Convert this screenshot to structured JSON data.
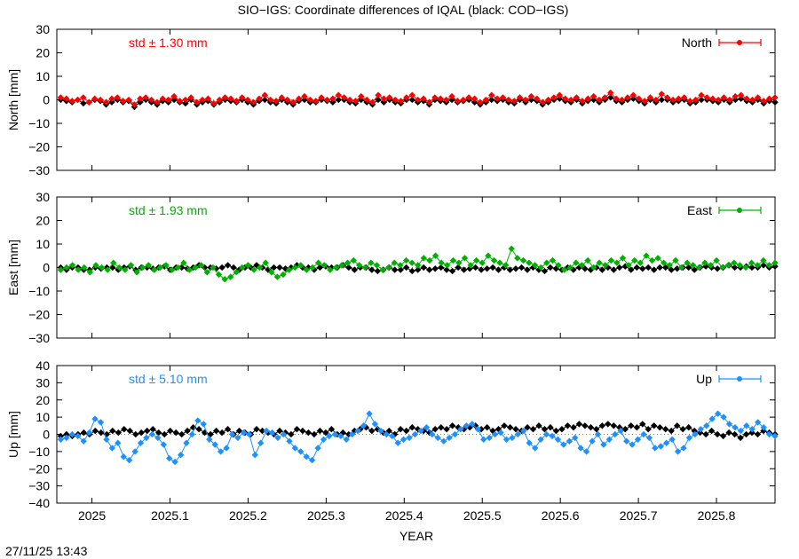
{
  "title": "SIO−IGS: Coordinate differences of IQAL (black: COD−IGS)",
  "xlabel": "YEAR",
  "timestamp": "27/11/25 13:43",
  "xticks": [
    "2025",
    "2025.1",
    "2025.2",
    "2025.3",
    "2025.4",
    "2025.5",
    "2025.6",
    "2025.7",
    "2025.8"
  ],
  "chart_data": [
    {
      "type": "scatter",
      "name": "north",
      "ylabel": "North [mm]",
      "legend": "North",
      "std_label": "std ± 1.30 mm",
      "color": "#ff0000",
      "ylim": [
        -30,
        30
      ],
      "yticks": [
        "30",
        "20",
        "10",
        "0",
        "−10",
        "−20",
        "−30"
      ],
      "xlim": [
        2024.955,
        2025.875
      ],
      "x_start": 2024.96,
      "x_end": 2025.875,
      "series": [
        {
          "name": "North",
          "values": [
            1,
            0.5,
            -0.5,
            0,
            1,
            -1,
            0.5,
            0,
            -1,
            0.5,
            1,
            -0.5,
            0,
            -2,
            0.5,
            1,
            0,
            -1,
            0.5,
            0,
            1.5,
            -0.5,
            0,
            1,
            -1,
            0,
            0.5,
            -1.5,
            0,
            1,
            0.5,
            -0.5,
            1,
            0,
            -1,
            0.5,
            2,
            0,
            -0.5,
            1,
            0,
            -1,
            0.5,
            1.5,
            0,
            -0.5,
            1,
            0,
            0.5,
            2,
            1,
            0,
            -0.5,
            1.5,
            0,
            -1,
            2,
            0.5,
            1,
            0,
            -0.5,
            1,
            2,
            0,
            0.5,
            -1,
            1,
            0.5,
            0,
            1.5,
            -0.5,
            0,
            1,
            0.5,
            -1,
            0,
            2,
            0.5,
            1,
            0,
            -0.5,
            1,
            0,
            1.5,
            0.5,
            -1,
            0,
            1,
            2,
            0.5,
            0,
            1,
            -0.5,
            0.5,
            1.5,
            0,
            1,
            3,
            0.5,
            0,
            1,
            2,
            0.5,
            -0.5,
            1,
            0,
            2.5,
            1,
            0,
            0.5,
            1,
            -0.5,
            0,
            2,
            1,
            0.5,
            0,
            1,
            0,
            1.5,
            2,
            0.5,
            0,
            1,
            -0.5,
            0.5,
            1
          ]
        },
        {
          "name": "black",
          "values": [
            0,
            -0.5,
            -1,
            0,
            -1.5,
            -1,
            0,
            -0.5,
            -2,
            -1,
            0,
            -1,
            -0.5,
            -3,
            -1,
            0,
            -1,
            -2,
            -0.5,
            -1,
            0,
            -1,
            -1.5,
            0,
            -2,
            -1,
            -0.5,
            -2,
            -1,
            0,
            -0.5,
            -1,
            0,
            -1,
            -2,
            -0.5,
            0,
            -1,
            -1.5,
            0,
            -1,
            -2,
            -0.5,
            0,
            -1,
            -1,
            0,
            -0.5,
            -1,
            0,
            0,
            -1,
            -1.5,
            0,
            -1,
            -2,
            0,
            -1,
            0,
            -1,
            -1.5,
            0,
            0,
            -1,
            -0.5,
            -2,
            0,
            -0.5,
            -1,
            0,
            -1,
            -0.5,
            0,
            -1,
            -2,
            -1,
            0,
            -0.5,
            0,
            -1,
            -1.5,
            0,
            -1,
            0,
            -0.5,
            -2,
            -1,
            0,
            0.5,
            -0.5,
            -1,
            0,
            -1.5,
            -0.5,
            0,
            -1,
            0,
            1,
            -0.5,
            -1,
            0,
            0.5,
            -0.5,
            -1.5,
            0,
            -1,
            0,
            0,
            -1,
            -0.5,
            0,
            -1.5,
            -1,
            0,
            0,
            -0.5,
            -1,
            0,
            -1,
            0,
            0.5,
            -0.5,
            -1,
            0,
            -1.5,
            -0.5,
            -1
          ]
        }
      ]
    },
    {
      "type": "scatter",
      "name": "east",
      "ylabel": "East [mm]",
      "legend": "East",
      "std_label": "std ± 1.93 mm",
      "color": "#00b000",
      "ylim": [
        -30,
        30
      ],
      "yticks": [
        "30",
        "20",
        "10",
        "0",
        "−10",
        "−20",
        "−30"
      ],
      "xlim": [
        2024.955,
        2025.875
      ],
      "x_start": 2024.96,
      "x_end": 2025.875,
      "series": [
        {
          "name": "East",
          "values": [
            -1,
            0,
            1,
            -1,
            0,
            -2,
            1,
            0,
            -1,
            2,
            0,
            -1,
            1,
            -2,
            0,
            1,
            -1,
            0,
            1,
            -1,
            0,
            2,
            -1,
            0,
            1,
            -2,
            0,
            -3,
            -5,
            -4,
            -2,
            0,
            1,
            -1,
            0,
            2,
            -2,
            -4,
            -3,
            -1,
            0,
            1,
            -1,
            0,
            2,
            1,
            -1,
            0,
            1,
            2,
            3,
            1,
            0,
            2,
            1,
            -1,
            0,
            2,
            1,
            3,
            2,
            1,
            4,
            3,
            5,
            2,
            1,
            3,
            2,
            4,
            1,
            3,
            2,
            5,
            3,
            2,
            1,
            8,
            4,
            3,
            2,
            1,
            0,
            2,
            3,
            1,
            -1,
            0,
            2,
            1,
            3,
            0,
            2,
            1,
            3,
            2,
            4,
            1,
            3,
            2,
            5,
            3,
            4,
            2,
            1,
            3,
            0,
            2,
            1,
            0,
            2,
            1,
            3,
            0,
            1,
            2,
            1,
            0,
            2,
            1,
            3,
            1,
            2
          ]
        },
        {
          "name": "black",
          "values": [
            0,
            -1,
            0,
            0,
            -1,
            -1,
            0,
            -0.5,
            0,
            0,
            -1,
            0,
            0.5,
            -1,
            0,
            0,
            -0.5,
            0,
            0.5,
            -1,
            0,
            0,
            -0.5,
            0,
            1,
            0,
            0,
            -0.5,
            0,
            1,
            0,
            -1,
            0,
            0,
            1,
            0,
            -1,
            0,
            0,
            -0.5,
            0,
            1,
            0,
            0,
            -1,
            0,
            0.5,
            0,
            0,
            1,
            0,
            -1,
            0,
            0,
            -1,
            -1.5,
            -1,
            0,
            -1,
            -1,
            0,
            -1.5,
            -1,
            0,
            -1,
            -0.5,
            0,
            -1,
            -1.5,
            0,
            -1,
            -0.5,
            0,
            -1,
            -0.5,
            0,
            -1,
            0,
            -1,
            -0.5,
            0,
            -1,
            0,
            -1,
            -1.5,
            0,
            -0.5,
            -1,
            0,
            -1,
            0,
            -0.5,
            -1,
            0,
            -1,
            0,
            -1,
            0,
            0.5,
            -1,
            0,
            -0.5,
            0,
            -1,
            0,
            0,
            -1,
            -0.5,
            0,
            0,
            -1,
            0,
            0.5,
            0,
            -0.5,
            0,
            1,
            0,
            0,
            0.5,
            0,
            0,
            1,
            0,
            0.5
          ]
        }
      ]
    },
    {
      "type": "scatter",
      "name": "up",
      "ylabel": "Up [mm]",
      "legend": "Up",
      "std_label": "std ± 5.10 mm",
      "color": "#1e90ff",
      "ylim": [
        -40,
        40
      ],
      "yticks": [
        "40",
        "30",
        "20",
        "10",
        "0",
        "−10",
        "−20",
        "−30",
        "−40"
      ],
      "xlim": [
        2024.955,
        2025.875
      ],
      "x_start": 2024.96,
      "x_end": 2025.875,
      "series": [
        {
          "name": "Up",
          "values": [
            -3,
            -2,
            0,
            -1,
            -4,
            1,
            9,
            7,
            -3,
            -8,
            -5,
            -13,
            -15,
            -10,
            -5,
            -2,
            0,
            -2,
            -6,
            -14,
            -16,
            -12,
            -5,
            0,
            8,
            6,
            -3,
            -6,
            -10,
            -8,
            0,
            -2,
            1,
            0,
            -12,
            -5,
            2,
            1,
            -2,
            0,
            -4,
            -8,
            -10,
            -13,
            -15,
            -8,
            -3,
            -1,
            0,
            -1,
            -3,
            0,
            2,
            5,
            12,
            6,
            2,
            0,
            -1,
            -5,
            -3,
            -2,
            0,
            2,
            4,
            0,
            -2,
            -4,
            -2,
            0,
            3,
            5,
            6,
            3,
            -3,
            -2,
            0,
            1,
            -3,
            -2,
            0,
            2,
            -5,
            -8,
            -3,
            0,
            -1,
            -3,
            -6,
            -4,
            -2,
            -8,
            -10,
            -4,
            0,
            -6,
            -3,
            0,
            2,
            -4,
            -6,
            -3,
            0,
            -2,
            -8,
            -7,
            -5,
            -3,
            -10,
            -8,
            -2,
            0,
            3,
            5,
            9,
            12,
            10,
            6,
            4,
            2,
            5,
            3,
            7,
            4,
            0,
            -1
          ]
        },
        {
          "name": "black",
          "values": [
            -1,
            0,
            -1,
            0,
            1,
            0,
            2,
            1,
            0,
            2,
            1,
            3,
            2,
            0,
            1,
            2,
            3,
            1,
            0,
            2,
            1,
            0,
            2,
            4,
            3,
            1,
            0,
            2,
            1,
            3,
            0,
            2,
            1,
            0,
            3,
            2,
            1,
            0,
            2,
            1,
            0,
            3,
            2,
            1,
            0,
            2,
            1,
            3,
            0,
            1,
            0,
            2,
            3,
            4,
            2,
            3,
            1,
            2,
            0,
            3,
            2,
            4,
            3,
            2,
            1,
            3,
            4,
            3,
            5,
            4,
            3,
            4,
            5,
            3,
            4,
            2,
            3,
            5,
            4,
            3,
            2,
            4,
            3,
            5,
            3,
            4,
            2,
            3,
            5,
            4,
            6,
            5,
            4,
            3,
            5,
            6,
            5,
            4,
            3,
            5,
            4,
            6,
            3,
            5,
            4,
            3,
            2,
            5,
            3,
            4,
            2,
            1,
            0,
            2,
            0,
            -1,
            1,
            0,
            -2,
            0,
            1,
            0,
            2,
            1,
            0
          ]
        }
      ]
    }
  ]
}
